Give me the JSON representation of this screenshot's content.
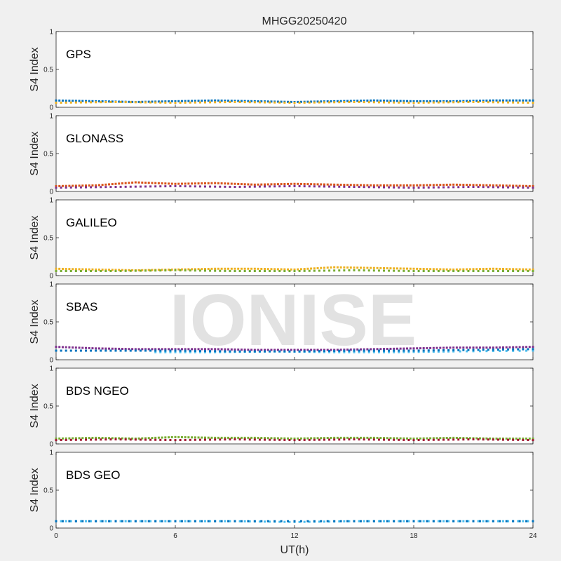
{
  "chart_data": {
    "type": "scatter",
    "title": "MHGG20250420",
    "xlabel": "UT(h)",
    "ylabel": "S4 Index",
    "xlim": [
      0,
      24
    ],
    "ylim": [
      0,
      1
    ],
    "x_ticks": [
      "0",
      "6",
      "12",
      "18",
      "24"
    ],
    "y_ticks": [
      "0",
      "0.5",
      "1"
    ],
    "watermark": "IONISE",
    "grid": false,
    "series_colors": [
      "#0072bd",
      "#d95319",
      "#edb120",
      "#7e2f8e",
      "#77ac30",
      "#4dbeee",
      "#a2142f"
    ],
    "panels": [
      {
        "label": "GPS",
        "series": [
          {
            "x": [
              0,
              2,
              4,
              6,
              8,
              10,
              12,
              14,
              16,
              18,
              20,
              22,
              24
            ],
            "y": [
              0.09,
              0.08,
              0.07,
              0.08,
              0.09,
              0.08,
              0.07,
              0.08,
              0.09,
              0.08,
              0.08,
              0.09,
              0.09
            ]
          },
          {
            "x": [
              0,
              3,
              6,
              9,
              12,
              15,
              18,
              21,
              24
            ],
            "y": [
              0.06,
              0.07,
              0.06,
              0.07,
              0.06,
              0.07,
              0.06,
              0.07,
              0.06
            ]
          }
        ]
      },
      {
        "label": "GLONASS",
        "series": [
          {
            "x": [
              0,
              2,
              4,
              6,
              8,
              10,
              12,
              14,
              16,
              18,
              20,
              22,
              24
            ],
            "y": [
              0.07,
              0.08,
              0.12,
              0.1,
              0.11,
              0.09,
              0.1,
              0.09,
              0.08,
              0.08,
              0.09,
              0.08,
              0.07
            ]
          },
          {
            "x": [
              0,
              3,
              6,
              9,
              12,
              15,
              18,
              21,
              24
            ],
            "y": [
              0.05,
              0.06,
              0.07,
              0.06,
              0.07,
              0.06,
              0.05,
              0.06,
              0.05
            ]
          }
        ]
      },
      {
        "label": "GALILEO",
        "series": [
          {
            "x": [
              0,
              2,
              4,
              6,
              8,
              10,
              12,
              14,
              16,
              18,
              20,
              22,
              24
            ],
            "y": [
              0.09,
              0.08,
              0.07,
              0.08,
              0.09,
              0.09,
              0.08,
              0.11,
              0.1,
              0.09,
              0.08,
              0.09,
              0.08
            ]
          },
          {
            "x": [
              0,
              3,
              6,
              9,
              12,
              15,
              18,
              21,
              24
            ],
            "y": [
              0.06,
              0.06,
              0.07,
              0.06,
              0.06,
              0.07,
              0.06,
              0.06,
              0.06
            ]
          }
        ]
      },
      {
        "label": "SBAS",
        "series": [
          {
            "x": [
              0,
              2,
              4,
              6,
              8,
              10,
              12,
              14,
              16,
              18,
              20,
              22,
              24
            ],
            "y": [
              0.17,
              0.15,
              0.14,
              0.14,
              0.14,
              0.13,
              0.13,
              0.13,
              0.14,
              0.15,
              0.16,
              0.16,
              0.17
            ]
          },
          {
            "x": [
              5,
              8,
              11,
              14,
              17,
              20,
              24
            ],
            "y": [
              0.1,
              0.1,
              0.11,
              0.1,
              0.1,
              0.11,
              0.12
            ]
          },
          {
            "x": [
              0,
              3,
              6,
              9,
              12,
              15,
              18,
              21,
              24
            ],
            "y": [
              0.12,
              0.12,
              0.12,
              0.11,
              0.11,
              0.12,
              0.12,
              0.13,
              0.14
            ]
          }
        ]
      },
      {
        "label": "BDS NGEO",
        "series": [
          {
            "x": [
              0,
              2,
              4,
              6,
              8,
              10,
              12,
              14,
              16,
              18,
              20,
              22,
              24
            ],
            "y": [
              0.07,
              0.08,
              0.07,
              0.09,
              0.08,
              0.08,
              0.07,
              0.08,
              0.08,
              0.07,
              0.08,
              0.07,
              0.07
            ]
          },
          {
            "x": [
              0,
              3,
              6,
              9,
              12,
              15,
              18,
              21,
              24
            ],
            "y": [
              0.05,
              0.06,
              0.05,
              0.06,
              0.05,
              0.06,
              0.05,
              0.06,
              0.05
            ]
          }
        ]
      },
      {
        "label": "BDS GEO",
        "series": [
          {
            "x": [
              0,
              3,
              6,
              9,
              12,
              15,
              18,
              21,
              24
            ],
            "y": [
              0.09,
              0.09,
              0.09,
              0.09,
              0.08,
              0.09,
              0.09,
              0.09,
              0.09
            ]
          },
          {
            "x": [
              0,
              4,
              8,
              12,
              16,
              20,
              24
            ],
            "y": [
              0.09,
              0.09,
              0.09,
              0.09,
              0.09,
              0.09,
              0.09
            ]
          }
        ]
      }
    ]
  }
}
